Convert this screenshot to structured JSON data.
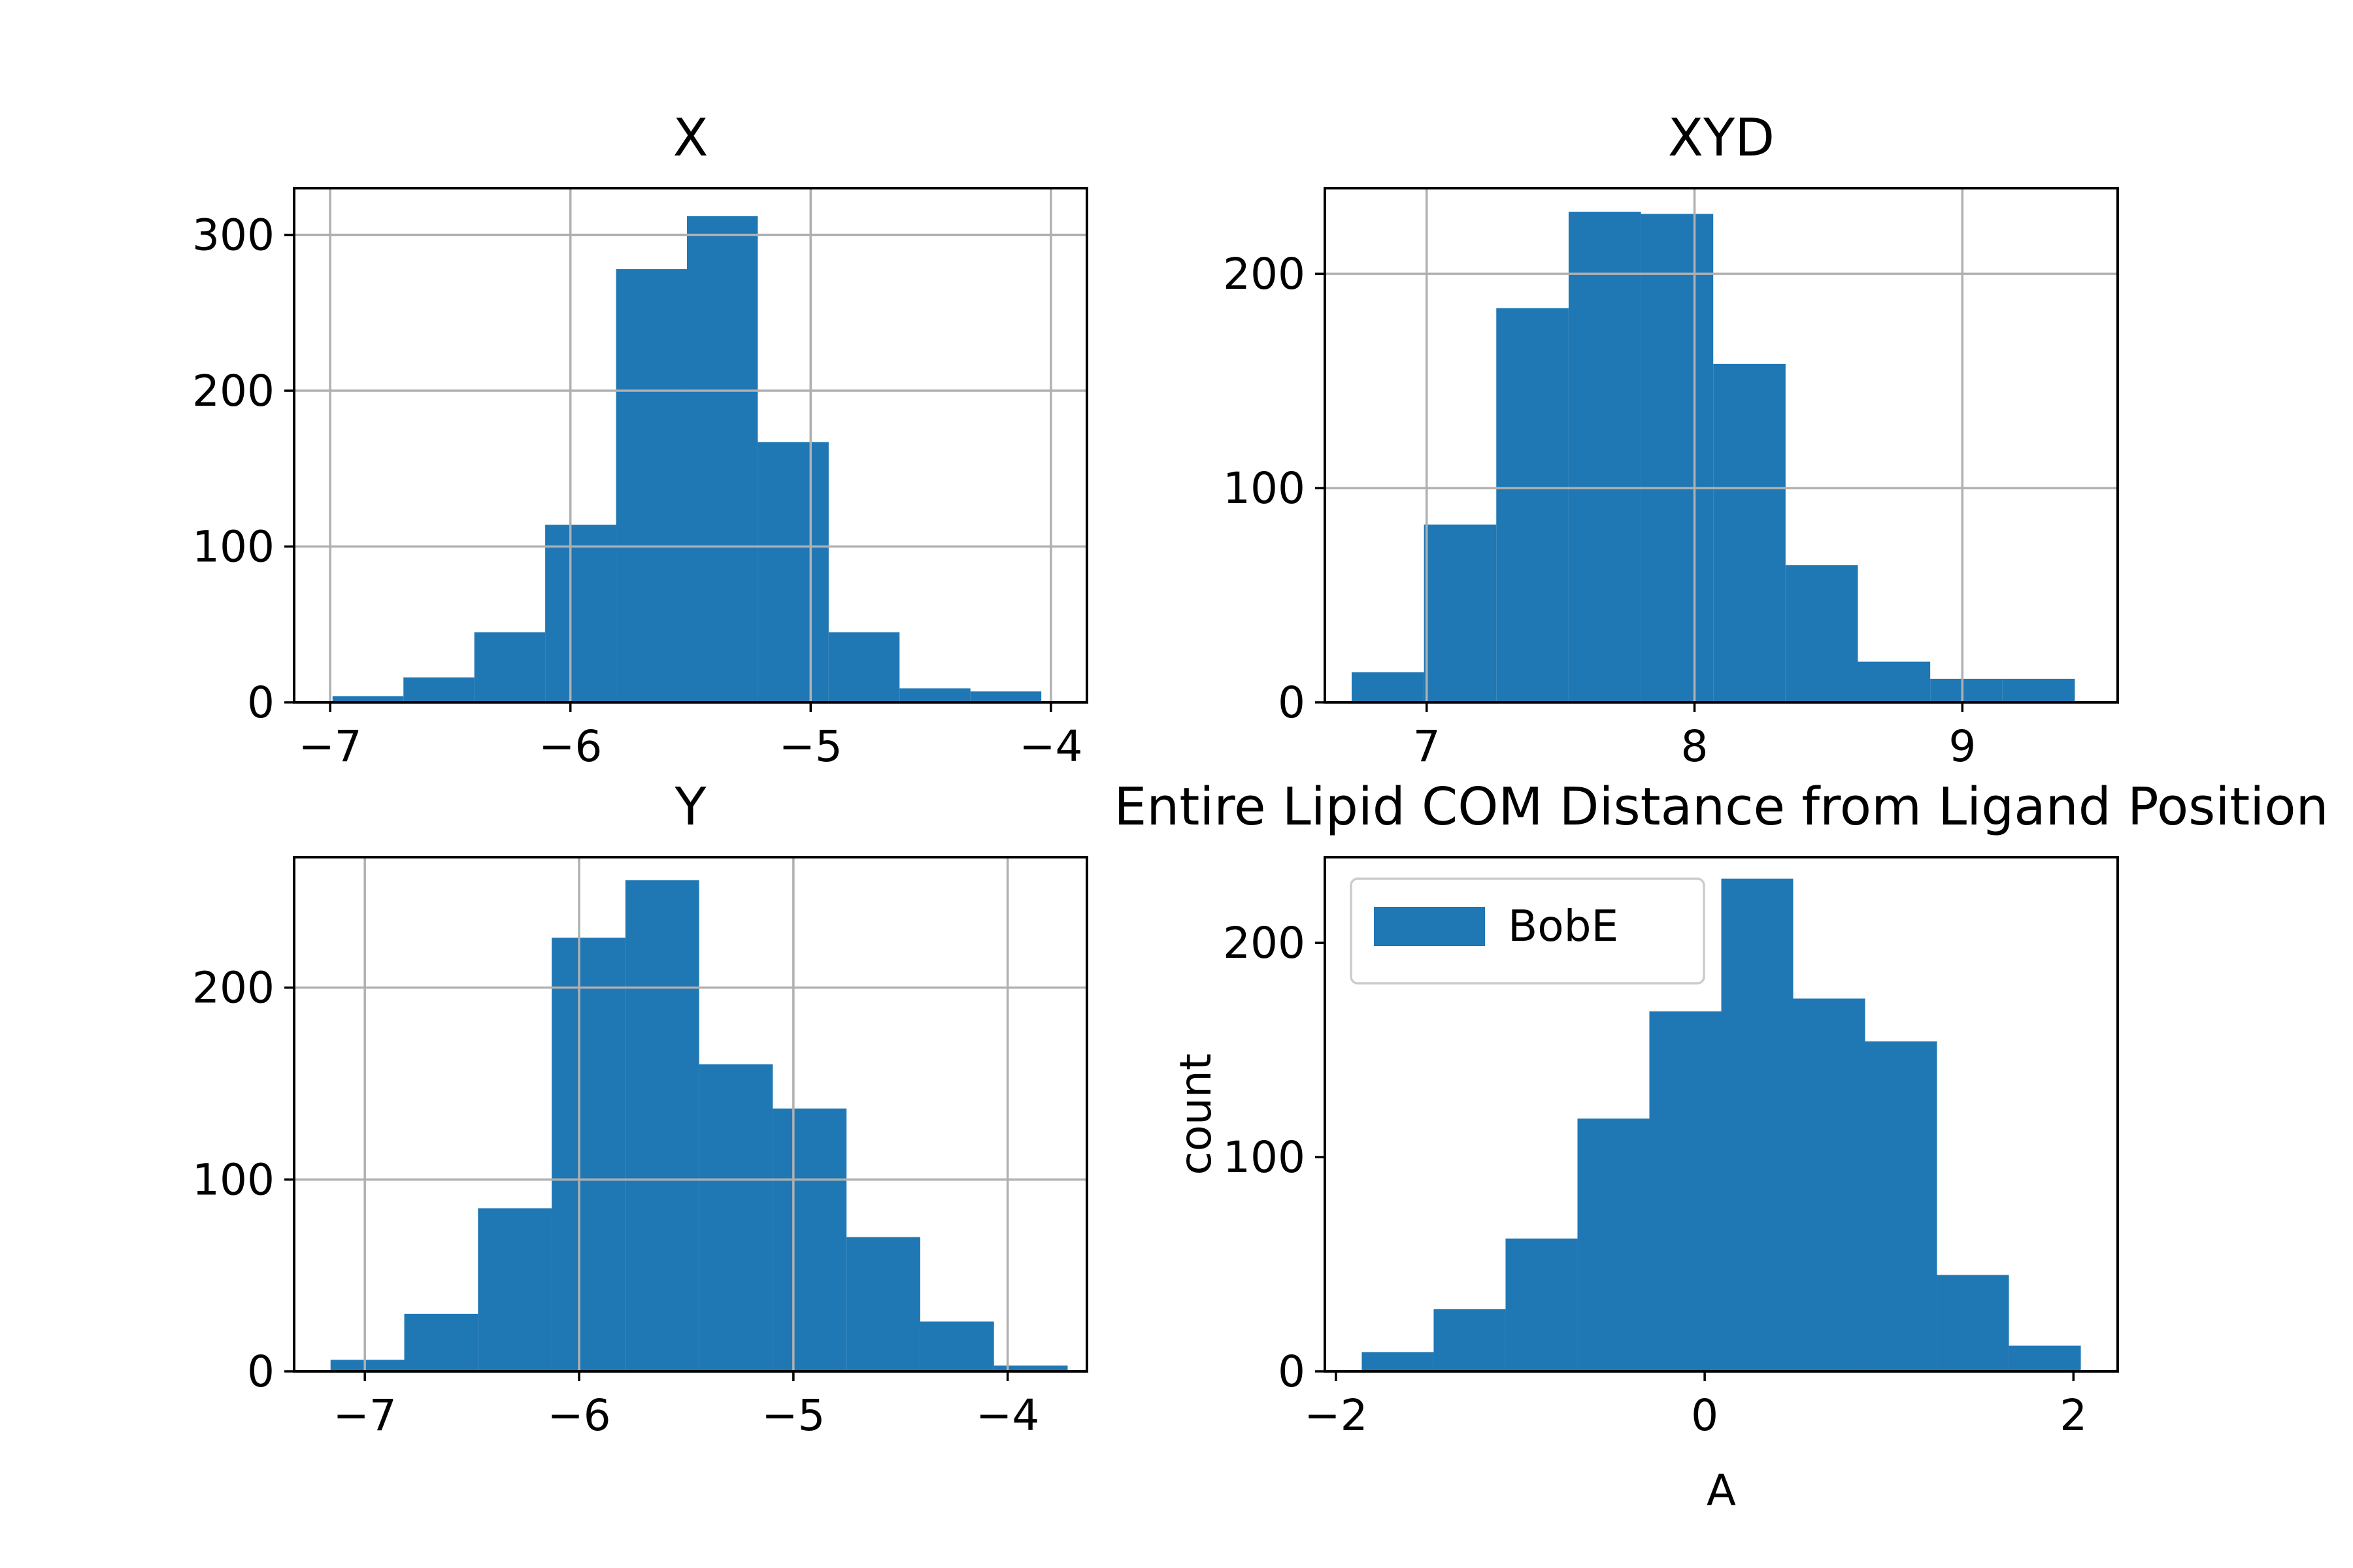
{
  "figure": {
    "background": "#ffffff",
    "bar_color": "#1f77b4",
    "grid_color": "#b0b0b0"
  },
  "chart_data": [
    {
      "type": "bar",
      "subtype": "histogram",
      "title": "X",
      "xlabel": "",
      "ylabel": "",
      "xlim": [
        -7.15,
        -3.85
      ],
      "ylim": [
        0,
        330
      ],
      "bin_edges": [
        -6.99,
        -6.695,
        -6.4,
        -6.105,
        -5.81,
        -5.515,
        -5.22,
        -4.925,
        -4.63,
        -4.335,
        -4.04
      ],
      "values": [
        4,
        16,
        45,
        114,
        278,
        312,
        167,
        45,
        9,
        7
      ],
      "xticks": [
        -7,
        -6,
        -5,
        -4
      ],
      "xtick_labels": [
        "−7",
        "−6",
        "−5",
        "−4"
      ],
      "yticks": [
        0,
        100,
        200,
        300
      ],
      "ytick_labels": [
        "0",
        "100",
        "200",
        "300"
      ],
      "grid": true,
      "legend": null
    },
    {
      "type": "bar",
      "subtype": "histogram",
      "title": "XYD",
      "xlabel": "",
      "ylabel": "",
      "xlim": [
        6.62,
        9.58
      ],
      "ylim": [
        0,
        240
      ],
      "bin_edges": [
        6.72,
        6.99,
        7.26,
        7.53,
        7.8,
        8.07,
        8.34,
        8.61,
        8.88,
        9.15,
        9.42
      ],
      "values": [
        14,
        83,
        184,
        229,
        228,
        158,
        64,
        19,
        11,
        11
      ],
      "xticks": [
        7,
        8,
        9
      ],
      "xtick_labels": [
        "7",
        "8",
        "9"
      ],
      "yticks": [
        0,
        100,
        200
      ],
      "ytick_labels": [
        "0",
        "100",
        "200"
      ],
      "grid": true,
      "legend": null
    },
    {
      "type": "bar",
      "subtype": "histogram",
      "title": "Y",
      "xlabel": "",
      "ylabel": "",
      "xlim": [
        -7.33,
        -3.63
      ],
      "ylim": [
        0,
        268
      ],
      "bin_edges": [
        -7.16,
        -6.816,
        -6.472,
        -6.128,
        -5.784,
        -5.44,
        -5.096,
        -4.752,
        -4.408,
        -4.064,
        -3.72
      ],
      "values": [
        6,
        30,
        85,
        226,
        256,
        160,
        137,
        70,
        26,
        3
      ],
      "xticks": [
        -7,
        -6,
        -5,
        -4
      ],
      "xtick_labels": [
        "−7",
        "−6",
        "−5",
        "−4"
      ],
      "yticks": [
        0,
        100,
        200
      ],
      "ytick_labels": [
        "0",
        "100",
        "200"
      ],
      "grid": true,
      "legend": null
    },
    {
      "type": "bar",
      "subtype": "histogram",
      "title": "Entire Lipid COM Distance from Ligand Position",
      "xlabel": "A",
      "ylabel": "count",
      "xlim": [
        -2.06,
        2.24
      ],
      "ylim": [
        0,
        240
      ],
      "bin_edges": [
        -1.86,
        -1.47,
        -1.08,
        -0.69,
        -0.3,
        0.09,
        0.48,
        0.87,
        1.26,
        1.65,
        2.04
      ],
      "values": [
        9,
        29,
        62,
        118,
        168,
        230,
        174,
        154,
        45,
        12
      ],
      "xticks": [
        -2,
        0,
        2
      ],
      "xtick_labels": [
        "−2",
        "0",
        "2"
      ],
      "yticks": [
        0,
        100,
        200
      ],
      "ytick_labels": [
        "0",
        "100",
        "200"
      ],
      "grid": false,
      "legend": {
        "placement": "upper-left",
        "entries": [
          "BobE"
        ]
      }
    }
  ]
}
